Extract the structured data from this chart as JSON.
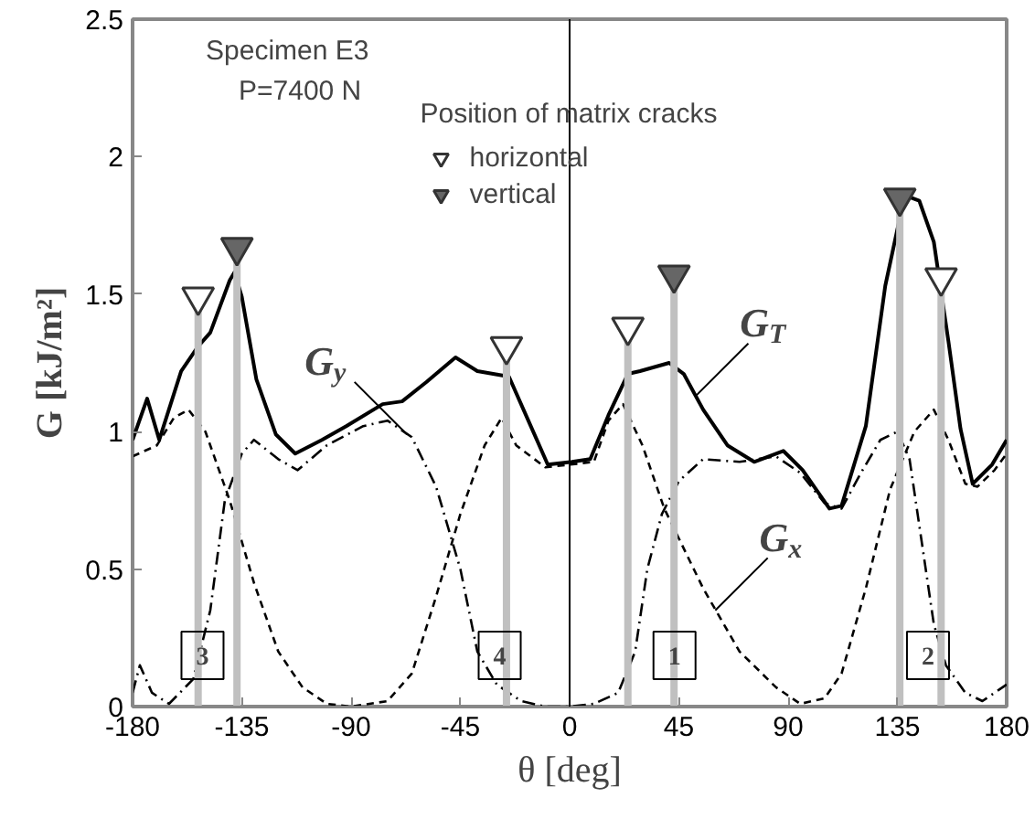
{
  "chart_data": {
    "type": "line",
    "xlabel": "θ [deg]",
    "ylabel": "G [kJ/m²]",
    "xlim": [
      -180,
      180
    ],
    "xticks": [
      -180,
      -135,
      -90,
      -45,
      0,
      45,
      90,
      135,
      180
    ],
    "ylim": [
      0,
      2.5
    ],
    "yticks": [
      0,
      0.5,
      1,
      1.5,
      2,
      2.5
    ],
    "grid": false,
    "legend": "top",
    "legend_title": "Position of matrix cracks",
    "series": [
      {
        "line_style": "solid",
        "color": "#000000",
        "x": [
          -180,
          -174,
          -169,
          -160,
          -153,
          -148,
          -140,
          -138,
          -135,
          -129,
          -121,
          -113,
          -102,
          -92,
          -77,
          -69,
          -59,
          -47,
          -38,
          -25,
          -17,
          -9,
          1,
          8.5,
          16,
          24,
          29,
          41,
          47,
          55,
          65,
          76,
          88,
          96,
          107,
          112,
          122,
          130,
          138,
          144,
          150,
          156,
          161,
          166,
          174,
          180
        ],
        "values": [
          0.97,
          1.12,
          0.97,
          1.22,
          1.31,
          1.36,
          1.55,
          1.58,
          1.49,
          1.19,
          0.99,
          0.92,
          0.97,
          1.02,
          1.1,
          1.11,
          1.18,
          1.27,
          1.22,
          1.2,
          1.04,
          0.88,
          0.89,
          0.9,
          1.06,
          1.21,
          1.22,
          1.25,
          1.21,
          1.08,
          0.95,
          0.89,
          0.93,
          0.86,
          0.72,
          0.73,
          1.02,
          1.53,
          1.86,
          1.84,
          1.69,
          1.33,
          1.01,
          0.81,
          0.88,
          0.97
        ]
      },
      {
        "line_style": "dashed",
        "color": "#000000",
        "x": [
          -180,
          -170,
          -163,
          -157,
          -150,
          -140,
          -130,
          -120,
          -110,
          -100,
          -90,
          -75,
          -65,
          -55,
          -45,
          -35,
          -28,
          -22,
          -10,
          0,
          10,
          16,
          22,
          30,
          39,
          55,
          70,
          85,
          95,
          105,
          112,
          122,
          132,
          142,
          150,
          156,
          163,
          168,
          175,
          180
        ],
        "values": [
          0.91,
          0.95,
          1.05,
          1.08,
          1.0,
          0.75,
          0.45,
          0.2,
          0.07,
          0.01,
          0,
          0.02,
          0.12,
          0.4,
          0.7,
          0.95,
          1.05,
          0.95,
          0.87,
          0.88,
          0.89,
          1.04,
          1.1,
          0.95,
          0.72,
          0.43,
          0.2,
          0.07,
          0.01,
          0.03,
          0.12,
          0.43,
          0.79,
          1.0,
          1.08,
          0.97,
          0.81,
          0.8,
          0.86,
          0.92
        ]
      },
      {
        "line_style": "dashdot",
        "color": "#000000",
        "x": [
          -180,
          -177,
          -172,
          -165,
          -155,
          -148,
          -142,
          -135,
          -130,
          -120,
          -112,
          -100,
          -85,
          -75,
          -65,
          -55,
          -45,
          -38,
          -30,
          -20,
          -10,
          0,
          10,
          20,
          27,
          32,
          38,
          45,
          55,
          70,
          85,
          95,
          105,
          112,
          120,
          128,
          135,
          140,
          145,
          150,
          155,
          163,
          170,
          180
        ],
        "values": [
          0.05,
          0.15,
          0.05,
          0.01,
          0.1,
          0.35,
          0.75,
          0.92,
          0.97,
          0.9,
          0.86,
          0.95,
          1.02,
          1.04,
          0.98,
          0.8,
          0.5,
          0.2,
          0.08,
          0.02,
          0,
          0,
          0.01,
          0.05,
          0.2,
          0.5,
          0.7,
          0.82,
          0.9,
          0.89,
          0.91,
          0.85,
          0.74,
          0.72,
          0.85,
          0.97,
          1.0,
          0.9,
          0.6,
          0.3,
          0.15,
          0.05,
          0.02,
          0.08
        ]
      },
      {
        "type": "lollipop",
        "name": "horizontal",
        "color": "#ffffff",
        "marker": "triangle",
        "x": [
          -153,
          -26,
          24,
          153
        ],
        "values": [
          1.49,
          1.31,
          1.38,
          1.56
        ]
      },
      {
        "type": "lollipop",
        "name": "vertical",
        "color": "#666666",
        "marker": "triangle",
        "x": [
          -137,
          43,
          136
        ],
        "values": [
          1.67,
          1.57,
          1.85
        ]
      }
    ],
    "ref_lines": [
      {
        "axis": "x",
        "value": 0,
        "color": "#000000"
      }
    ],
    "annotations": [
      "Specimen E3",
      "P=7400 N",
      {
        "text": "G$_{T}$",
        "x": 52,
        "y": 1.13
      },
      {
        "text": "G$_{y}$",
        "x": -67,
        "y": 0.99
      },
      {
        "text": "G$_{x}$",
        "x": 60,
        "y": 0.35
      },
      "3",
      "4",
      "1",
      "2"
    ]
  }
}
